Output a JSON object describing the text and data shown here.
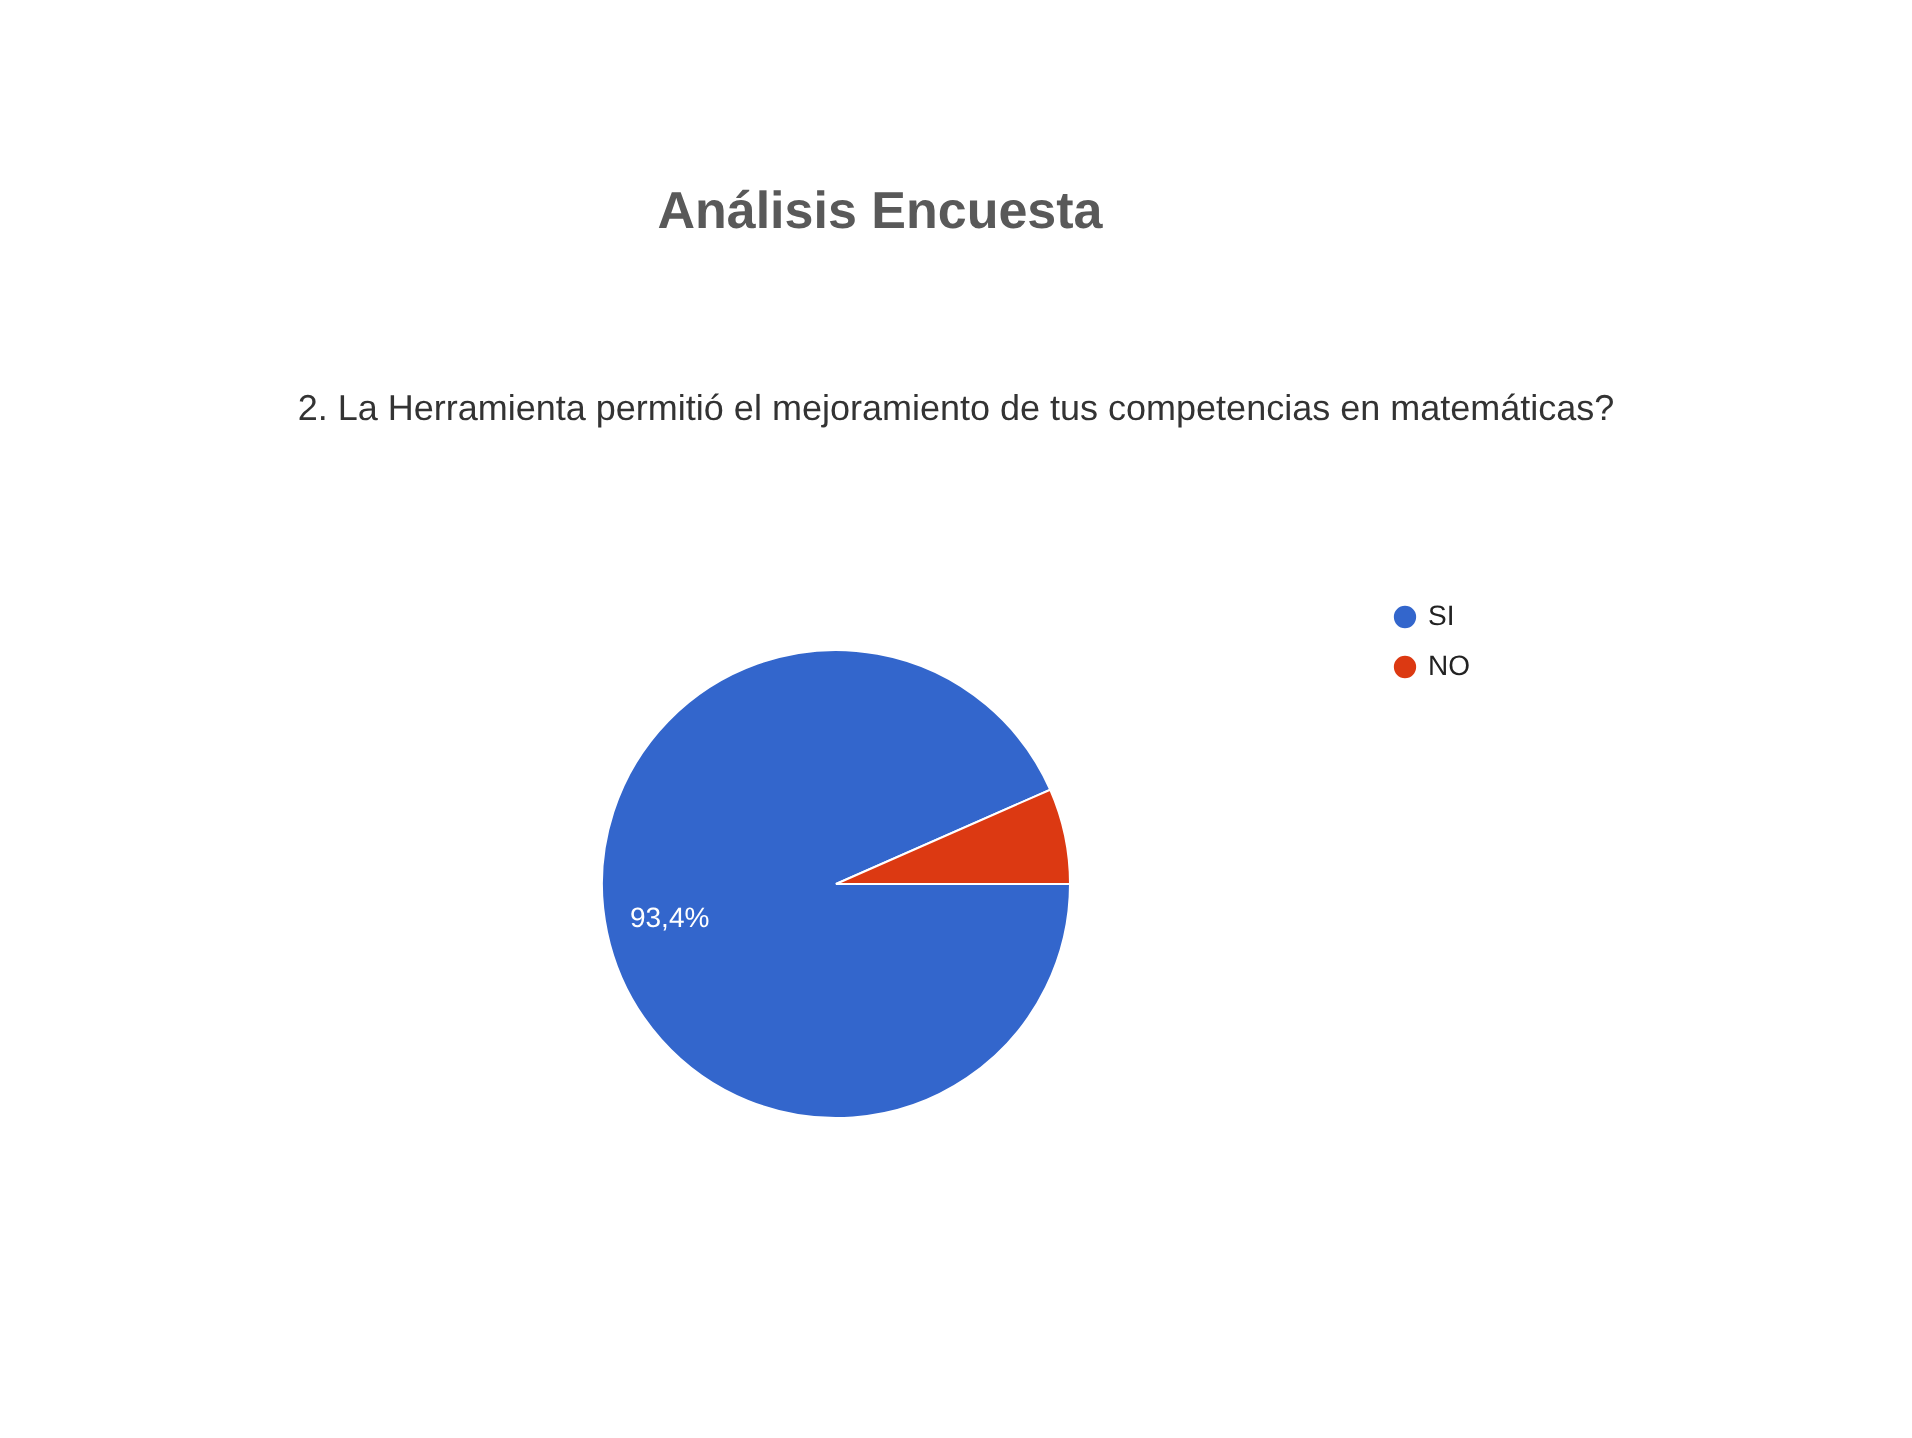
{
  "chart_data": {
    "type": "pie",
    "title": "Análisis Encuesta",
    "subtitle": "2. La Herramienta permitió el mejoramiento de tus competencias en matemáticas?",
    "categories": [
      "SI",
      "NO"
    ],
    "values": [
      93.4,
      6.6
    ],
    "colors": [
      "#3366cc",
      "#dc3912"
    ],
    "value_labels": [
      "93,4%",
      null
    ],
    "legend": "right"
  }
}
